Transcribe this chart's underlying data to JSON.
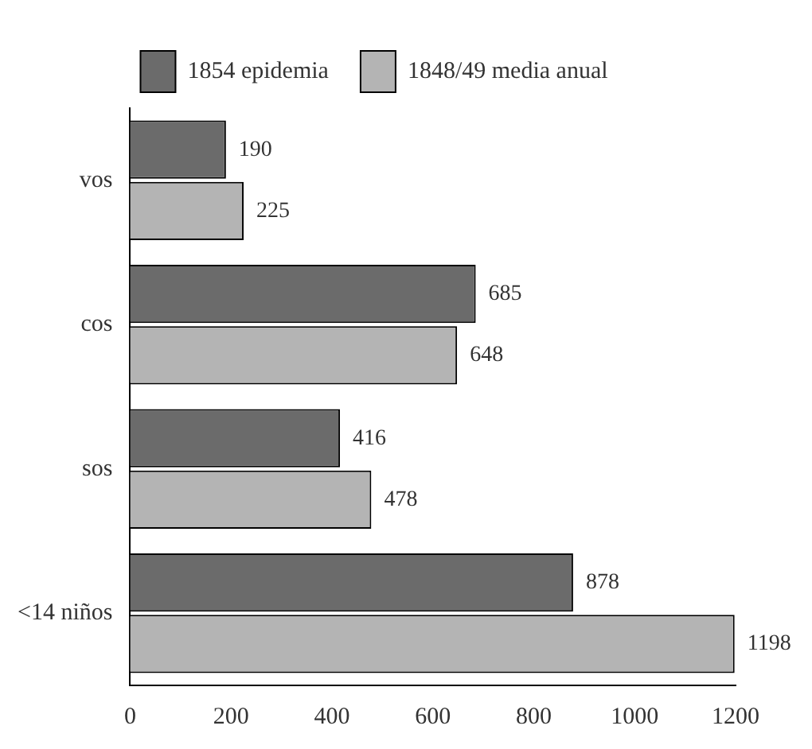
{
  "chart_data": {
    "type": "bar",
    "orientation": "horizontal",
    "categories": [
      "vos",
      "cos",
      "sos",
      "<14 niños"
    ],
    "series": [
      {
        "name": "1854 epidemia",
        "color": "#6b6b6b",
        "values": [
          190,
          685,
          416,
          878
        ]
      },
      {
        "name": "1848/49 media anual",
        "color": "#b4b4b4",
        "values": [
          225,
          648,
          478,
          1198
        ]
      }
    ],
    "xlim": [
      0,
      1200
    ],
    "xticks": [
      0,
      200,
      400,
      600,
      800,
      1000,
      1200
    ],
    "grid": false,
    "legend": "top",
    "data_labels": true
  }
}
